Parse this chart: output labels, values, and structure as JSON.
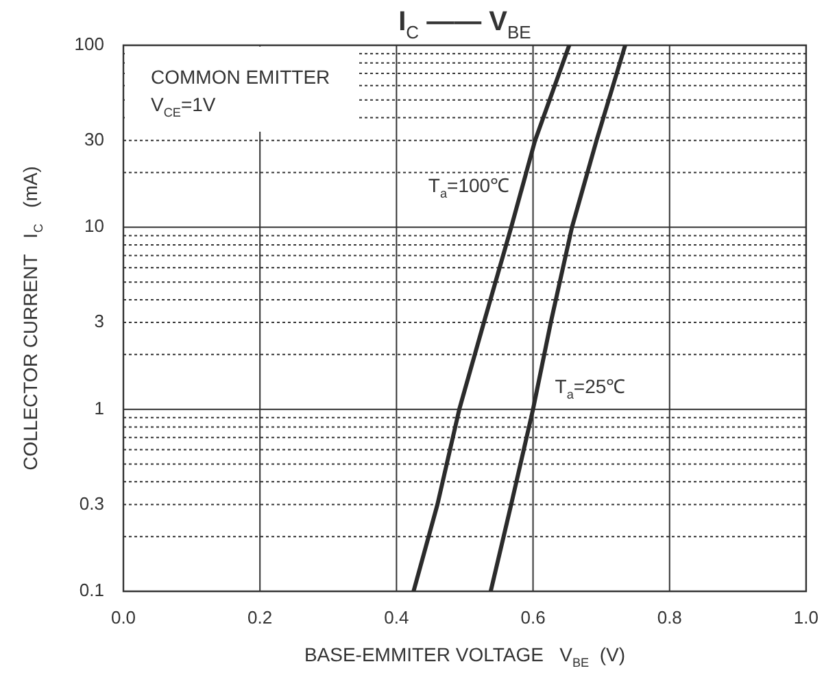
{
  "chart_data": {
    "type": "line",
    "title": "I$_{C}$ —— V$_{BE}$",
    "xlabel": "BASE-EMMITER VOLTAGE   V$_{BE}$  (V)",
    "ylabel": "COLLECTOR CURRENT   I$_{C}$   (mA)",
    "series": [
      {
        "name": "T$_{a}$=100℃",
        "color": "#2b2b2b",
        "x": [
          0.425,
          0.46,
          0.492,
          0.528,
          0.568,
          0.603,
          0.653
        ],
        "values": [
          0.1,
          0.3,
          1,
          3,
          10,
          30,
          100
        ]
      },
      {
        "name": "T$_{a}$=25℃",
        "color": "#2b2b2b",
        "x": [
          0.538,
          0.568,
          0.6,
          0.626,
          0.657,
          0.693,
          0.735
        ],
        "values": [
          0.1,
          0.3,
          1,
          3,
          10,
          30,
          100
        ]
      }
    ],
    "xlim": [
      0,
      1
    ],
    "xticks": [
      {
        "value": 0,
        "label": "0.0"
      },
      0.2,
      0.4,
      0.6,
      0.8,
      {
        "value": 1,
        "label": "1.0"
      }
    ],
    "ylim": [
      0.1,
      100
    ],
    "log": true,
    "yticks": [
      0.1,
      {
        "value": 0.2,
        "label": null
      },
      0.3,
      {
        "value": 0.4,
        "label": null
      },
      {
        "value": 0.5,
        "label": null
      },
      {
        "value": 0.6,
        "label": null
      },
      {
        "value": 0.7,
        "label": null
      },
      {
        "value": 0.8,
        "label": null
      },
      {
        "value": 0.9,
        "label": null
      },
      1,
      {
        "value": 2,
        "label": null
      },
      3,
      {
        "value": 4,
        "label": null
      },
      {
        "value": 5,
        "label": null
      },
      {
        "value": 6,
        "label": null
      },
      {
        "value": 7,
        "label": null
      },
      {
        "value": 8,
        "label": null
      },
      {
        "value": 9,
        "label": null
      },
      10,
      {
        "value": 20,
        "label": null
      },
      30,
      {
        "value": 40,
        "label": null
      },
      {
        "value": 50,
        "label": null
      },
      {
        "value": 60,
        "label": null
      },
      {
        "value": 70,
        "label": null
      },
      {
        "value": 80,
        "label": null
      },
      {
        "value": 90,
        "label": null
      },
      100
    ],
    "grid": true,
    "legend": false,
    "marker": "none",
    "line_style": "solid",
    "annotations": [
      "COMMON EMITTER",
      "V$_{CE}$=1V"
    ]
  }
}
